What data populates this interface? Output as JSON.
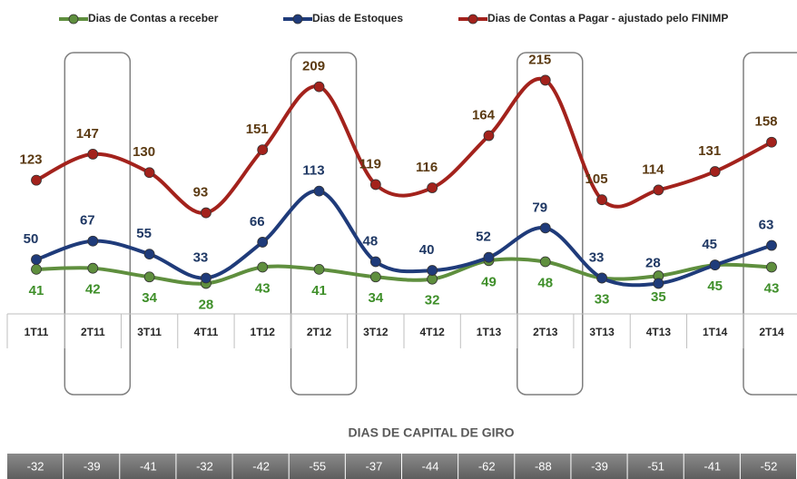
{
  "chart_data": {
    "type": "line",
    "categories": [
      "1T11",
      "2T11",
      "3T11",
      "4T11",
      "1T12",
      "2T12",
      "3T12",
      "4T12",
      "1T13",
      "2T13",
      "3T13",
      "4T13",
      "1T14",
      "2T14"
    ],
    "series": [
      {
        "name": "Dias de Contas a receber",
        "color": "#5f8f3e",
        "label_color": "#3f8f2a",
        "values": [
          41,
          42,
          34,
          28,
          43,
          41,
          34,
          32,
          49,
          48,
          33,
          35,
          45,
          43
        ]
      },
      {
        "name": "Dias de Estoques",
        "color": "#1f3b7a",
        "label_color": "#1f3864",
        "values": [
          50,
          67,
          55,
          33,
          66,
          113,
          48,
          40,
          52,
          79,
          33,
          28,
          45,
          63
        ]
      },
      {
        "name": "Dias de Contas a Pagar - ajustado pelo FINIMP",
        "color": "#a3221c",
        "label_color": "#5b3a12",
        "values": [
          123,
          147,
          130,
          93,
          151,
          209,
          119,
          116,
          164,
          215,
          105,
          114,
          131,
          158
        ]
      }
    ]
  },
  "capital_de_giro": {
    "title": "DIAS DE CAPITAL DE GIRO",
    "values": [
      "-32",
      "-39",
      "-41",
      "-32",
      "-42",
      "-55",
      "-37",
      "-44",
      "-62",
      "-88",
      "-39",
      "-51",
      "-41",
      "-52"
    ]
  }
}
